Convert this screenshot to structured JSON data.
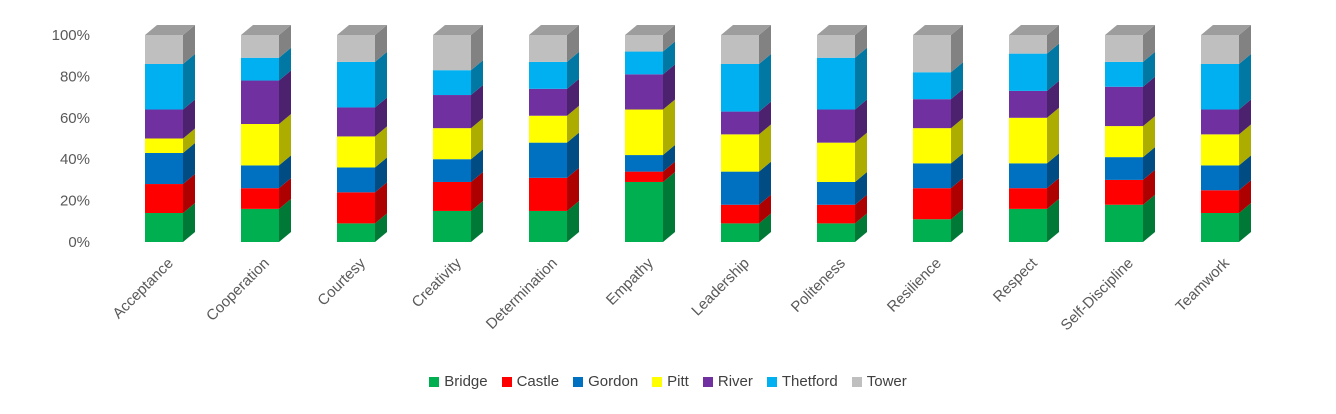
{
  "chart_data": {
    "type": "bar",
    "stacked": true,
    "normalized_100_percent": true,
    "style": "3d-column",
    "categories": [
      "Acceptance",
      "Cooperation",
      "Courtesy",
      "Creativity",
      "Determination",
      "Empathy",
      "Leadership",
      "Politeness",
      "Resilience",
      "Respect",
      "Self-Discipline",
      "Teamwork"
    ],
    "series": [
      {
        "name": "Bridge",
        "color": "#00b050",
        "values": [
          14,
          16,
          9,
          15,
          15,
          29,
          9,
          9,
          11,
          16,
          18,
          14
        ]
      },
      {
        "name": "Castle",
        "color": "#ff0000",
        "values": [
          14,
          10,
          15,
          14,
          16,
          5,
          9,
          9,
          15,
          10,
          12,
          11
        ]
      },
      {
        "name": "Gordon",
        "color": "#0070c0",
        "values": [
          15,
          11,
          12,
          11,
          17,
          8,
          16,
          11,
          12,
          12,
          11,
          12
        ]
      },
      {
        "name": "Pitt",
        "color": "#ffff00",
        "values": [
          7,
          20,
          15,
          15,
          13,
          22,
          18,
          19,
          17,
          22,
          15,
          15
        ]
      },
      {
        "name": "River",
        "color": "#7030a0",
        "values": [
          14,
          21,
          14,
          16,
          13,
          17,
          11,
          16,
          14,
          13,
          19,
          12
        ]
      },
      {
        "name": "Thetford",
        "color": "#00b0f0",
        "values": [
          22,
          11,
          22,
          12,
          13,
          11,
          23,
          25,
          13,
          18,
          12,
          22
        ]
      },
      {
        "name": "Tower",
        "color": "#bfbfbf",
        "values": [
          14,
          11,
          13,
          17,
          13,
          8,
          14,
          11,
          18,
          9,
          13,
          14
        ]
      }
    ],
    "y_ticks": [
      "0%",
      "20%",
      "40%",
      "60%",
      "80%",
      "100%"
    ],
    "ylim": [
      0,
      100
    ],
    "legend_position": "bottom",
    "grid": false
  }
}
